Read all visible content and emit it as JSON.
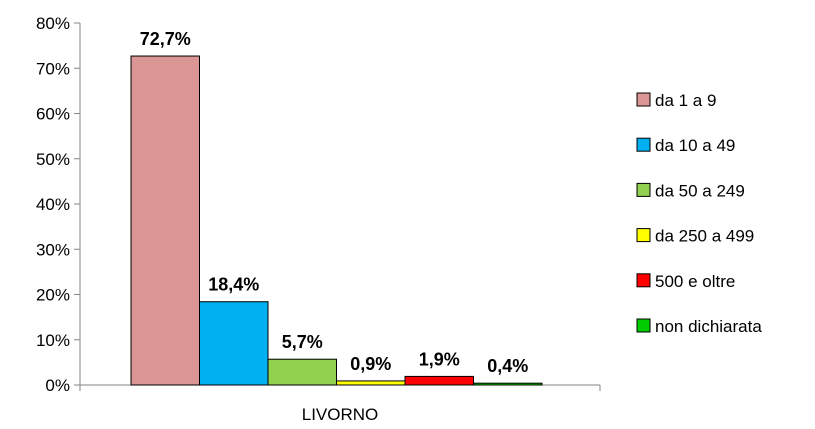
{
  "chart_data": {
    "type": "bar",
    "categories": [
      "LIVORNO"
    ],
    "series": [
      {
        "name": "da 1 a 9",
        "values": [
          72.7
        ],
        "label": "72,7%",
        "color": "#D99694"
      },
      {
        "name": "da 10 a 49",
        "values": [
          18.4
        ],
        "label": "18,4%",
        "color": "#00B0F0"
      },
      {
        "name": "da 50 a 249",
        "values": [
          5.7
        ],
        "label": "5,7%",
        "color": "#92D050"
      },
      {
        "name": "da 250 a 499",
        "values": [
          0.9
        ],
        "label": "0,9%",
        "color": "#FFFF00"
      },
      {
        "name": "500 e oltre",
        "values": [
          1.9
        ],
        "label": "1,9%",
        "color": "#FF0000"
      },
      {
        "name": "non dichiarata",
        "values": [
          0.4
        ],
        "label": "0,4%",
        "color": "#00CC00"
      }
    ],
    "y_ticks": [
      "0%",
      "10%",
      "20%",
      "30%",
      "40%",
      "50%",
      "60%",
      "70%",
      "80%"
    ],
    "ylim": [
      0,
      80
    ],
    "grid": false,
    "legend_position": "right"
  }
}
